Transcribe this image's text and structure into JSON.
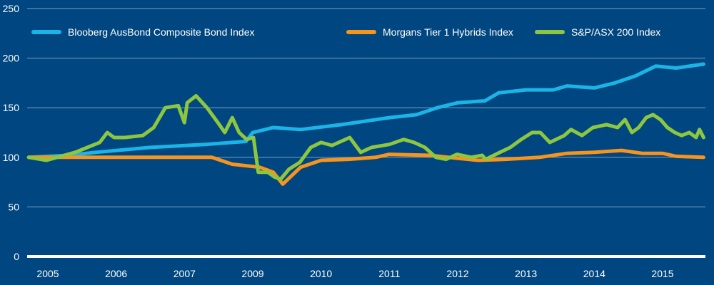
{
  "chart_data": {
    "type": "line",
    "title": "",
    "xlabel": "",
    "ylabel": "",
    "ylim": [
      0,
      250
    ],
    "yticks": [
      0,
      50,
      100,
      150,
      200,
      250
    ],
    "xticks": [
      "2005",
      "2006",
      "2007",
      "2009",
      "2010",
      "2011",
      "2012",
      "2013",
      "2014",
      "2015"
    ],
    "x_units": "tick index (0 = 2005 label, 9 = 2015 label)",
    "xlim": [
      -0.28,
      9.6
    ],
    "grid": true,
    "legend_position": "top",
    "series": [
      {
        "name": "Blooberg AusBond Composite Bond Index",
        "color": "#1bb4e6",
        "points": [
          [
            -0.28,
            100
          ],
          [
            0.3,
            102
          ],
          [
            0.7,
            105
          ],
          [
            1.5,
            110
          ],
          [
            2.3,
            113
          ],
          [
            2.9,
            116
          ],
          [
            3.0,
            125
          ],
          [
            3.3,
            130
          ],
          [
            3.7,
            128
          ],
          [
            4.3,
            133
          ],
          [
            4.7,
            137
          ],
          [
            5.0,
            140
          ],
          [
            5.4,
            143
          ],
          [
            5.7,
            150
          ],
          [
            6.0,
            155
          ],
          [
            6.4,
            157
          ],
          [
            6.6,
            165
          ],
          [
            7.0,
            168
          ],
          [
            7.4,
            168
          ],
          [
            7.6,
            172
          ],
          [
            8.0,
            170
          ],
          [
            8.3,
            175
          ],
          [
            8.6,
            182
          ],
          [
            8.9,
            192
          ],
          [
            9.2,
            190
          ],
          [
            9.6,
            194
          ]
        ]
      },
      {
        "name": "Morgans Tier 1 Hybrids Index",
        "color": "#f7941d",
        "points": [
          [
            -0.28,
            100
          ],
          [
            2.4,
            100
          ],
          [
            2.7,
            93
          ],
          [
            3.1,
            90
          ],
          [
            3.3,
            85
          ],
          [
            3.44,
            73
          ],
          [
            3.7,
            90
          ],
          [
            4.0,
            97
          ],
          [
            4.4,
            98
          ],
          [
            4.8,
            100
          ],
          [
            5.0,
            103
          ],
          [
            5.6,
            102
          ],
          [
            6.0,
            99
          ],
          [
            6.3,
            97
          ],
          [
            6.7,
            98
          ],
          [
            7.2,
            100
          ],
          [
            7.6,
            104
          ],
          [
            8.0,
            105
          ],
          [
            8.4,
            107
          ],
          [
            8.7,
            104
          ],
          [
            9.0,
            104
          ],
          [
            9.2,
            101
          ],
          [
            9.6,
            100
          ]
        ]
      },
      {
        "name": "S&P/ASX 200 Index",
        "color": "#8dc63f",
        "points": [
          [
            -0.28,
            100
          ],
          [
            -0.02,
            97
          ],
          [
            0.4,
            105
          ],
          [
            0.76,
            115
          ],
          [
            0.87,
            125
          ],
          [
            0.97,
            120
          ],
          [
            1.13,
            120
          ],
          [
            1.39,
            122
          ],
          [
            1.55,
            130
          ],
          [
            1.72,
            150
          ],
          [
            1.91,
            152
          ],
          [
            2.0,
            135
          ],
          [
            2.04,
            155
          ],
          [
            2.17,
            162
          ],
          [
            2.33,
            150
          ],
          [
            2.49,
            135
          ],
          [
            2.59,
            125
          ],
          [
            2.7,
            140
          ],
          [
            2.8,
            125
          ],
          [
            2.91,
            118
          ],
          [
            3.01,
            120
          ],
          [
            3.08,
            85
          ],
          [
            3.22,
            85
          ],
          [
            3.32,
            80
          ],
          [
            3.41,
            78
          ],
          [
            3.53,
            88
          ],
          [
            3.69,
            95
          ],
          [
            3.85,
            110
          ],
          [
            4.0,
            115
          ],
          [
            4.16,
            112
          ],
          [
            4.42,
            120
          ],
          [
            4.58,
            105
          ],
          [
            4.74,
            110
          ],
          [
            5.0,
            113
          ],
          [
            5.21,
            118
          ],
          [
            5.36,
            115
          ],
          [
            5.52,
            110
          ],
          [
            5.68,
            100
          ],
          [
            5.83,
            98
          ],
          [
            5.99,
            103
          ],
          [
            6.2,
            100
          ],
          [
            6.36,
            102
          ],
          [
            6.41,
            98
          ],
          [
            6.62,
            105
          ],
          [
            6.77,
            110
          ],
          [
            6.93,
            118
          ],
          [
            7.09,
            125
          ],
          [
            7.21,
            125
          ],
          [
            7.35,
            115
          ],
          [
            7.56,
            122
          ],
          [
            7.66,
            128
          ],
          [
            7.82,
            122
          ],
          [
            7.98,
            130
          ],
          [
            8.18,
            133
          ],
          [
            8.34,
            130
          ],
          [
            8.45,
            138
          ],
          [
            8.55,
            125
          ],
          [
            8.65,
            130
          ],
          [
            8.76,
            140
          ],
          [
            8.86,
            143
          ],
          [
            8.97,
            138
          ],
          [
            9.07,
            130
          ],
          [
            9.18,
            125
          ],
          [
            9.28,
            122
          ],
          [
            9.39,
            125
          ],
          [
            9.49,
            120
          ],
          [
            9.54,
            128
          ],
          [
            9.6,
            120
          ]
        ]
      }
    ]
  }
}
